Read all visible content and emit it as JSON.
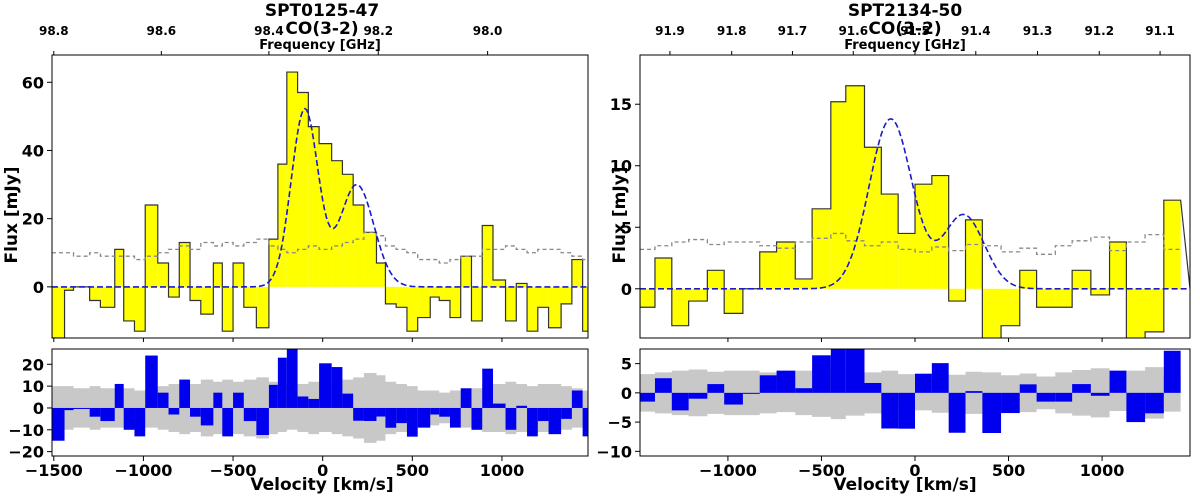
{
  "figure": {
    "panels": [
      {
        "title": "SPT0125-47",
        "subtitle": "CO(3-2)",
        "top_axis_label": "Frequency [GHz]",
        "top_ticks": [
          "98.8",
          "98.6",
          "98.4",
          "98.2",
          "98.0"
        ],
        "ylabel": "Flux [mJy]",
        "xlabel": "Velocity [km/s]"
      },
      {
        "title": "SPT2134-50",
        "subtitle": "CO(3-2)",
        "top_axis_label": "Frequency [GHz]",
        "top_ticks": [
          "91.9",
          "91.8",
          "91.7",
          "91.6",
          "91.5",
          "91.4",
          "91.3",
          "91.2",
          "91.1"
        ],
        "ylabel": "Flux [mJy]",
        "xlabel": "Velocity [km/s]"
      }
    ]
  },
  "chart_data": [
    {
      "type": "bar",
      "name": "SPT0125-47 CO(3-2) spectrum",
      "xlabel": "Velocity [km/s]",
      "ylabel": "Flux [mJy]",
      "xlim": [
        -1510,
        1480
      ],
      "ylim": [
        -15,
        68
      ],
      "xticks": [
        -1500,
        -1000,
        -500,
        0,
        500,
        1000
      ],
      "xtick_labels": [
        "−1500",
        "−1000",
        "−500",
        "0",
        "500",
        "1000"
      ],
      "yticks": [
        0,
        20,
        40,
        60
      ],
      "top_axis": {
        "label": "Frequency [GHz]",
        "ticks": [
          98.8,
          98.6,
          98.4,
          98.2,
          98.0
        ],
        "positions_kms": [
          -1500,
          -900,
          -300,
          310,
          920
        ]
      },
      "step_x": [
        -1510,
        -1440,
        -1390,
        -1300,
        -1240,
        -1160,
        -1110,
        -1050,
        -990,
        -920,
        -860,
        -800,
        -740,
        -680,
        -610,
        -560,
        -500,
        -440,
        -370,
        -300,
        -250,
        -200,
        -140,
        -80,
        -20,
        50,
        110,
        170,
        230,
        300,
        350,
        410,
        470,
        530,
        600,
        650,
        710,
        770,
        830,
        890,
        950,
        1020,
        1080,
        1140,
        1200,
        1260,
        1330,
        1390,
        1450,
        1480
      ],
      "flux": [
        -15,
        -1,
        0,
        -4,
        -6,
        11,
        -10,
        -13,
        24,
        7,
        -3,
        13,
        -4,
        -8,
        7,
        -13,
        7,
        -6,
        -12,
        14,
        36,
        63,
        57,
        47,
        42,
        37,
        33,
        24,
        16,
        7,
        -5,
        -6,
        -13,
        -9,
        -3,
        -4,
        -9,
        9,
        -10,
        18,
        2,
        -10,
        1,
        -13,
        -6,
        -12,
        -5,
        8,
        -13
      ],
      "noise": [
        10,
        10,
        9,
        10,
        9,
        9,
        9,
        8,
        9,
        10,
        11,
        12,
        11,
        13,
        12,
        13,
        12,
        13,
        14,
        12,
        11,
        10,
        11,
        12,
        11,
        12,
        13,
        14,
        16,
        15,
        12,
        11,
        10,
        8,
        8,
        7,
        8,
        9,
        9,
        11,
        11,
        12,
        11,
        10,
        11,
        11,
        10,
        9,
        8
      ],
      "fit": {
        "type": "double-gaussian",
        "components": [
          {
            "amp": 52,
            "center": -100,
            "sigma": 75
          },
          {
            "amp": 30,
            "center": 190,
            "sigma": 95
          }
        ]
      },
      "residual_ylim": [
        -22,
        27
      ],
      "residual_yticks": [
        -20,
        -10,
        0,
        10,
        20
      ],
      "colors": {
        "fill": "#ffff00",
        "residual": "#0000ee",
        "fit": "#1a1acc",
        "noise": "#888888",
        "noise_band": "#c8c8c8"
      }
    },
    {
      "type": "bar",
      "name": "SPT2134-50 CO(3-2) spectrum",
      "xlabel": "Velocity [km/s]",
      "ylabel": "Flux [mJy]",
      "xlim": [
        -1470,
        1470
      ],
      "ylim": [
        -4,
        19
      ],
      "xticks": [
        -1000,
        -500,
        0,
        500,
        1000
      ],
      "xtick_labels": [
        "−1000",
        "−500",
        "0",
        "500",
        "1000"
      ],
      "yticks": [
        0,
        5,
        10,
        15
      ],
      "top_axis": {
        "label": "Frequency [GHz]",
        "ticks": [
          91.9,
          91.8,
          91.7,
          91.6,
          91.5,
          91.4,
          91.3,
          91.2,
          91.1
        ],
        "positions_kms": [
          -1310,
          -980,
          -655,
          -330,
          0,
          325,
          655,
          985,
          1310
        ]
      },
      "step_x": [
        -1470,
        -1390,
        -1300,
        -1210,
        -1110,
        -1020,
        -920,
        -830,
        -740,
        -640,
        -550,
        -450,
        -370,
        -270,
        -180,
        -90,
        0,
        90,
        180,
        270,
        360,
        460,
        560,
        650,
        750,
        840,
        940,
        1040,
        1130,
        1230,
        1330,
        1420,
        1470
      ],
      "flux": [
        -1.5,
        2.5,
        -3,
        -1,
        1.5,
        -2,
        0,
        3,
        3.8,
        0.8,
        6.5,
        15.2,
        16.5,
        11.5,
        7.7,
        4.5,
        8.5,
        9.2,
        -1,
        5.6,
        -4.5,
        -3,
        1.5,
        -1.5,
        -1.5,
        1.5,
        -0.5,
        3.8,
        -5,
        -3.5,
        7.2
      ],
      "noise": [
        3.2,
        3.5,
        3.8,
        4.0,
        3.6,
        3.8,
        3.8,
        3.5,
        3.3,
        3.8,
        4.1,
        4.5,
        3.9,
        3.5,
        3.8,
        3.2,
        3.0,
        3.4,
        3.1,
        3.6,
        3.5,
        3.0,
        3.3,
        2.8,
        3.5,
        3.9,
        4.2,
        3.1,
        3.8,
        4.4,
        3.2
      ],
      "fit": {
        "type": "double-gaussian",
        "components": [
          {
            "amp": 13.8,
            "center": -130,
            "sigma": 115
          },
          {
            "amp": 6.0,
            "center": 260,
            "sigma": 110
          }
        ]
      },
      "residual_ylim": [
        -10.8,
        7.5
      ],
      "residual_yticks": [
        -10,
        -5,
        0,
        5
      ],
      "colors": {
        "fill": "#ffff00",
        "residual": "#0000ee",
        "fit": "#1a1acc",
        "noise": "#888888",
        "noise_band": "#c8c8c8"
      }
    }
  ]
}
